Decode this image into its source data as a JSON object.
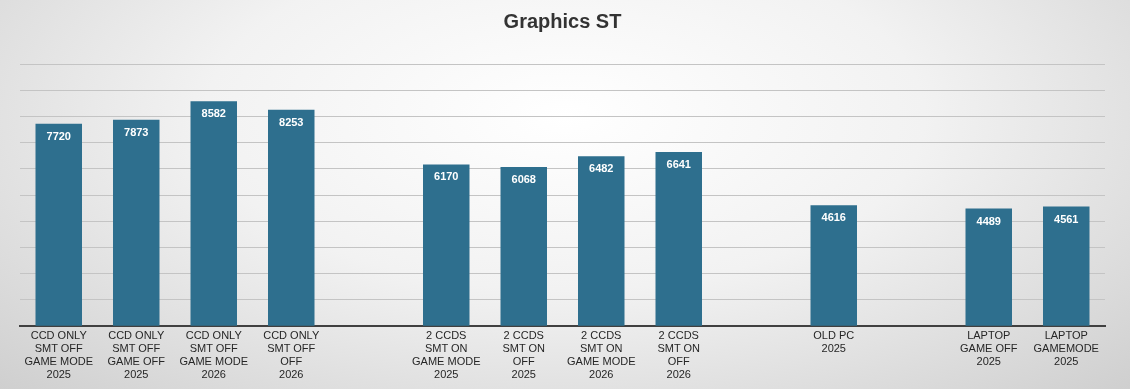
{
  "chart_data": {
    "type": "bar",
    "title": "Graphics ST",
    "categories": [
      "CCD ONLY\nSMT OFF\nGAME MODE\n2025",
      "CCD ONLY\nSMT OFF\nGAME OFF\n2025",
      "CCD ONLY\nSMT OFF\nGAME MODE\n2026",
      "CCD ONLY\nSMT OFF\nOFF\n2026",
      null,
      "2 CCDS\nSMT ON\nGAME MODE\n2025",
      "2 CCDS\nSMT ON\nOFF\n2025",
      "2 CCDS\nSMT ON\nGAME MODE\n2026",
      "2 CCDS\nSMT ON\nOFF\n2026",
      null,
      "OLD PC\n2025",
      null,
      "LAPTOP\nGAME OFF\n2025",
      "LAPTOP\nGAMEMODE\n2025"
    ],
    "values": [
      7720,
      7873,
      8582,
      8253,
      null,
      6170,
      6068,
      6482,
      6641,
      null,
      4616,
      null,
      4489,
      4561
    ],
    "color": "#2e6f8e",
    "data_labels": true,
    "ylim": [
      0,
      10000
    ],
    "yticks": [
      {
        "value": 0,
        "label": null
      },
      {
        "value": 1000,
        "label": null
      },
      {
        "value": 2000,
        "label": null
      },
      {
        "value": 3000,
        "label": null
      },
      {
        "value": 4000,
        "label": null
      },
      {
        "value": 5000,
        "label": null
      },
      {
        "value": 6000,
        "label": null
      },
      {
        "value": 7000,
        "label": null
      },
      {
        "value": 8000,
        "label": null
      },
      {
        "value": 9000,
        "label": null
      },
      {
        "value": 10000,
        "label": null
      }
    ],
    "grid": "y",
    "tick_labels": "x",
    "legend": false
  }
}
